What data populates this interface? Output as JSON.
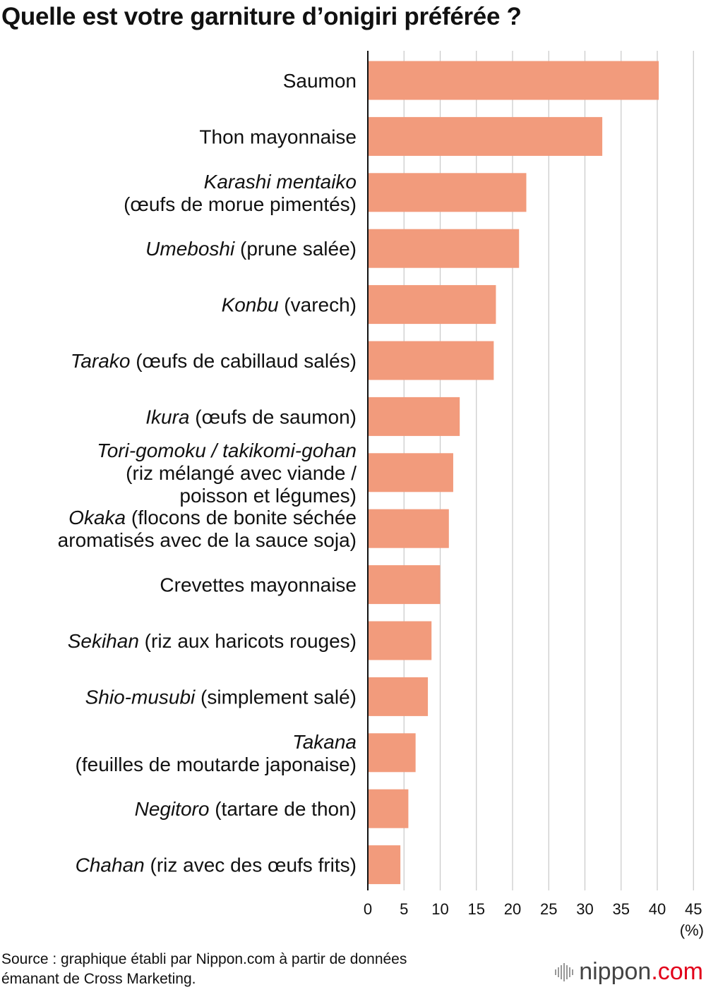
{
  "title": "Quelle est votre garniture d’onigiri préférée ?",
  "chart_data": {
    "type": "bar",
    "orientation": "horizontal",
    "title": "Quelle est votre garniture d’onigiri préférée ?",
    "xlabel": "(%)",
    "ylabel": "",
    "xlim": [
      0,
      45
    ],
    "xticks": [
      0,
      5,
      10,
      15,
      20,
      25,
      30,
      35,
      40,
      45
    ],
    "grid": "vertical",
    "bar_color": "#f29b7c",
    "categories": [
      "Saumon",
      "Thon mayonnaise",
      "Karashi mentaiko (œufs de morue pimentés)",
      "Umeboshi (prune salée)",
      "Konbu (varech)",
      "Tarako (œufs de cabillaud salés)",
      "Ikura (œufs de saumon)",
      "Tori-gomoku / takikomi-gohan (riz mélangé avec viande / poisson et légumes)",
      "Okaka (flocons de bonite séchée aromatisés avec de la sauce soja)",
      "Crevettes mayonnaise",
      "Sekihan (riz aux haricots rouges)",
      "Shio-musubi (simplement salé)",
      "Takana (feuilles de moutarde japonaise)",
      "Negitoro (tartare de thon)",
      "Chahan (riz avec des œufs frits)"
    ],
    "label_lines": [
      [
        [
          {
            "t": "Saumon",
            "i": false
          }
        ]
      ],
      [
        [
          {
            "t": "Thon mayonnaise",
            "i": false
          }
        ]
      ],
      [
        [
          {
            "t": "Karashi mentaiko",
            "i": true
          }
        ],
        [
          {
            "t": "(œufs de morue pimentés)",
            "i": false
          }
        ]
      ],
      [
        [
          {
            "t": "Umeboshi",
            "i": true
          },
          {
            "t": " (prune salée)",
            "i": false
          }
        ]
      ],
      [
        [
          {
            "t": "Konbu",
            "i": true
          },
          {
            "t": " (varech)",
            "i": false
          }
        ]
      ],
      [
        [
          {
            "t": "Tarako",
            "i": true
          },
          {
            "t": " (œufs de cabillaud salés)",
            "i": false
          }
        ]
      ],
      [
        [
          {
            "t": "Ikura",
            "i": true
          },
          {
            "t": " (œufs de saumon)",
            "i": false
          }
        ]
      ],
      [
        [
          {
            "t": "Tori-gomoku / takikomi-gohan",
            "i": true
          }
        ],
        [
          {
            "t": "(riz mélangé avec viande /",
            "i": false
          }
        ],
        [
          {
            "t": "poisson et légumes)",
            "i": false
          }
        ]
      ],
      [
        [
          {
            "t": "Okaka",
            "i": true
          },
          {
            "t": " (flocons de bonite séchée",
            "i": false
          }
        ],
        [
          {
            "t": "aromatisés avec de la sauce soja)",
            "i": false
          }
        ]
      ],
      [
        [
          {
            "t": "Crevettes mayonnaise",
            "i": false
          }
        ]
      ],
      [
        [
          {
            "t": "Sekihan",
            "i": true
          },
          {
            "t": " (riz aux haricots rouges)",
            "i": false
          }
        ]
      ],
      [
        [
          {
            "t": "Shio-musubi",
            "i": true
          },
          {
            "t": " (simplement salé)",
            "i": false
          }
        ]
      ],
      [
        [
          {
            "t": "Takana",
            "i": true
          }
        ],
        [
          {
            "t": "(feuilles de moutarde japonaise)",
            "i": false
          }
        ]
      ],
      [
        [
          {
            "t": "Negitoro",
            "i": true
          },
          {
            "t": " (tartare de thon)",
            "i": false
          }
        ]
      ],
      [
        [
          {
            "t": "Chahan",
            "i": true
          },
          {
            "t": " (riz avec des œufs frits)",
            "i": false
          }
        ]
      ]
    ],
    "values": [
      40.2,
      32.4,
      21.9,
      20.9,
      17.7,
      17.4,
      12.7,
      11.8,
      11.2,
      10.0,
      8.8,
      8.3,
      6.6,
      5.6,
      4.5
    ]
  },
  "source": {
    "line1": "Source : graphique établi par Nippon.com à partir de données",
    "line2": "émanant de Cross Marketing."
  },
  "logo": {
    "name": "nippon",
    "suffix": ".com"
  }
}
